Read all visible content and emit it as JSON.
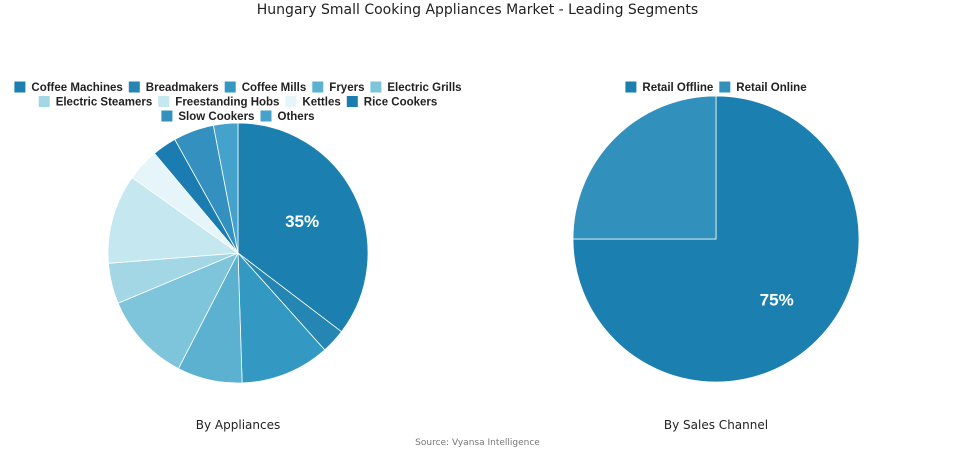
{
  "title": "Hungary Small Cooking Appliances Market - Leading Segments",
  "source": "Source: Vyansa Intelligence",
  "chart_data": [
    {
      "type": "pie",
      "subtitle": "By Appliances",
      "legend_position": "top",
      "categories": [
        "Coffee Machines",
        "Breadmakers",
        "Coffee Mills",
        "Fryers",
        "Electric Grills",
        "Electric Steamers",
        "Freestanding Hobs",
        "Kettles",
        "Rice Cookers",
        "Slow Cookers",
        "Others"
      ],
      "values": [
        35,
        3,
        11,
        8,
        11,
        5,
        11,
        4,
        3,
        5,
        3
      ],
      "colors": [
        "#1b80b0",
        "#2585b3",
        "#3399c2",
        "#5cb0d0",
        "#7ec4db",
        "#a3d7e6",
        "#c4e7f0",
        "#e6f5f9",
        "#1b7cb2",
        "#3390bf",
        "#45a2cb"
      ],
      "data_labels": [
        "35%",
        "",
        "",
        "",
        "",
        "",
        "",
        "",
        "",
        "",
        ""
      ]
    },
    {
      "type": "pie",
      "subtitle": "By Sales Channel",
      "legend_position": "top",
      "categories": [
        "Retail Offline",
        "Retail Online"
      ],
      "values": [
        75,
        25
      ],
      "colors": [
        "#1b80b0",
        "#3290bd"
      ],
      "data_labels": [
        "75%",
        ""
      ]
    }
  ]
}
